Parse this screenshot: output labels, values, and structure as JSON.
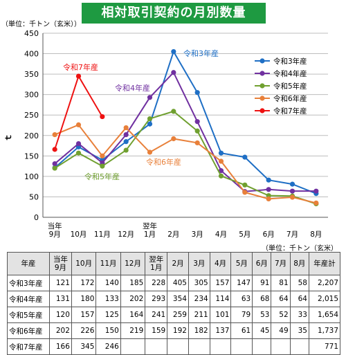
{
  "header": {
    "title": "相対取引契約の月別数量",
    "unit_top": "（単位：千トン（玄米））",
    "unit_table": "（単位：千トン（玄米）"
  },
  "chart_data": {
    "type": "line",
    "ylabel": "ｔ",
    "ylim": [
      0,
      450
    ],
    "yticks": [
      0,
      50,
      100,
      150,
      200,
      250,
      300,
      350,
      400,
      450
    ],
    "categories": [
      [
        "当年",
        "9月"
      ],
      [
        "10月"
      ],
      [
        "11月"
      ],
      [
        "12月"
      ],
      [
        "翌年",
        "1月"
      ],
      [
        "2月"
      ],
      [
        "3月"
      ],
      [
        "4月"
      ],
      [
        "5月"
      ],
      [
        "6月"
      ],
      [
        "7月"
      ],
      [
        "8月"
      ]
    ],
    "legend_position": "right",
    "series": [
      {
        "name": "令和3年産",
        "color": "#1f6fc5",
        "values": [
          121,
          172,
          140,
          185,
          228,
          405,
          305,
          157,
          147,
          91,
          81,
          58
        ]
      },
      {
        "name": "令和4年産",
        "color": "#7030a0",
        "values": [
          131,
          180,
          133,
          202,
          293,
          354,
          234,
          114,
          63,
          68,
          64,
          64
        ]
      },
      {
        "name": "令和5年産",
        "color": "#70a030",
        "values": [
          120,
          157,
          125,
          164,
          241,
          259,
          211,
          101,
          79,
          53,
          52,
          33
        ]
      },
      {
        "name": "令和6年産",
        "color": "#e8803a",
        "values": [
          202,
          226,
          150,
          219,
          159,
          192,
          182,
          137,
          61,
          45,
          49,
          35
        ]
      },
      {
        "name": "令和7年産",
        "color": "#ee1111",
        "values": [
          166,
          345,
          246,
          null,
          null,
          null,
          null,
          null,
          null,
          null,
          null,
          null
        ]
      }
    ],
    "annotations": [
      {
        "text": "令和3年産",
        "series": 0
      },
      {
        "text": "令和4年産",
        "series": 1
      },
      {
        "text": "令和5年産",
        "series": 2
      },
      {
        "text": "令和6年産",
        "series": 3
      },
      {
        "text": "令和7年産",
        "series": 4
      }
    ]
  },
  "table": {
    "headers": [
      "年産",
      "当年\n9月",
      "10月",
      "11月",
      "12月",
      "翌年\n1月",
      "2月",
      "3月",
      "4月",
      "5月",
      "6月",
      "7月",
      "8月",
      "年産計"
    ],
    "rows": [
      {
        "label": "令和3年産",
        "cells": [
          "121",
          "172",
          "140",
          "185",
          "228",
          "405",
          "305",
          "157",
          "147",
          "91",
          "81",
          "58"
        ],
        "total": "2,207"
      },
      {
        "label": "令和4年産",
        "cells": [
          "131",
          "180",
          "133",
          "202",
          "293",
          "354",
          "234",
          "114",
          "63",
          "68",
          "64",
          "64"
        ],
        "total": "2,015"
      },
      {
        "label": "令和5年産",
        "cells": [
          "120",
          "157",
          "125",
          "164",
          "241",
          "259",
          "211",
          "101",
          "79",
          "53",
          "52",
          "33"
        ],
        "total": "1,654"
      },
      {
        "label": "令和6年産",
        "cells": [
          "202",
          "226",
          "150",
          "219",
          "159",
          "192",
          "182",
          "137",
          "61",
          "45",
          "49",
          "35"
        ],
        "total": "1,737"
      },
      {
        "label": "令和7年産",
        "cells": [
          "166",
          "345",
          "246",
          "",
          "",
          "",
          "",
          "",
          "",
          "",
          "",
          ""
        ],
        "total": "771"
      }
    ]
  }
}
